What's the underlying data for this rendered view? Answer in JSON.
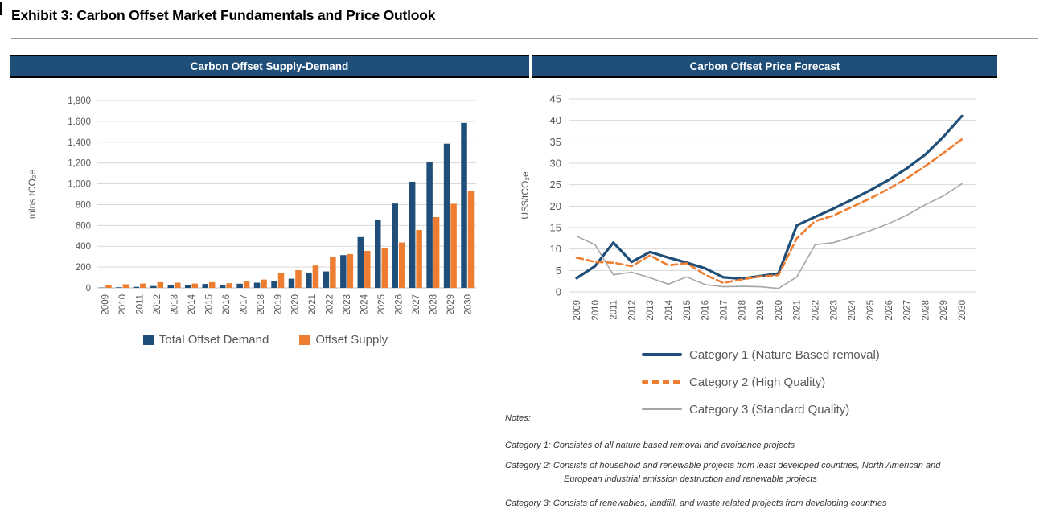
{
  "title": "Exhibit 3: Carbon Offset Market Fundamentals and Price Outlook",
  "panels": {
    "left_header": "Carbon Offset Supply-Demand",
    "right_header": "Carbon Offset Price Forecast"
  },
  "colors": {
    "header_bg": "#1F4E79",
    "header_text": "#FFFFFF",
    "navy": "#1F4E79",
    "orange": "#ED7D31",
    "gray": "#A6A6A6",
    "gridline": "#D9D9D9",
    "axis_line": "#BFBFBF",
    "axis_text": "#595959"
  },
  "chart_data": [
    {
      "type": "bar",
      "title": "Carbon Offset Supply-Demand",
      "xlabel": "",
      "ylabel": "mlns tCO₂e",
      "ylim": [
        0,
        1800
      ],
      "ytick_step": 200,
      "grid": true,
      "legend_position": "bottom-center",
      "categories": [
        "2009",
        "2010",
        "2011",
        "2012",
        "2013",
        "2014",
        "2015",
        "2016",
        "2017",
        "2018",
        "2019",
        "2020",
        "2021",
        "2022",
        "2023",
        "2024",
        "2025",
        "2026",
        "2027",
        "2028",
        "2029",
        "2030"
      ],
      "series": [
        {
          "name": "Total Offset Demand",
          "color": "#1F4E79",
          "values": [
            3,
            6,
            10,
            18,
            28,
            28,
            38,
            28,
            40,
            50,
            65,
            88,
            145,
            158,
            315,
            488,
            650,
            810,
            1020,
            1205,
            1385,
            1585
          ]
        },
        {
          "name": "Offset Supply",
          "color": "#ED7D31",
          "values": [
            30,
            35,
            42,
            55,
            50,
            42,
            55,
            45,
            65,
            80,
            145,
            170,
            215,
            295,
            325,
            355,
            378,
            436,
            556,
            680,
            808,
            932
          ]
        }
      ]
    },
    {
      "type": "line",
      "title": "Carbon Offset Price Forecast",
      "xlabel": "",
      "ylabel": "US$/tCO₂e",
      "ylim": [
        0,
        45
      ],
      "ytick_step": 5,
      "grid": true,
      "legend_position": "bottom-left",
      "x": [
        "2009",
        "2010",
        "2011",
        "2012",
        "2013",
        "2014",
        "2015",
        "2016",
        "2017",
        "2018",
        "2019",
        "2020",
        "2021",
        "2022",
        "2023",
        "2024",
        "2025",
        "2026",
        "2027",
        "2028",
        "2029",
        "2030"
      ],
      "series": [
        {
          "name": "Category 1 (Nature Based removal)",
          "color": "#1F4E79",
          "dash": false,
          "values": [
            3.2,
            6.0,
            11.5,
            7.0,
            9.3,
            8.0,
            6.8,
            5.5,
            3.4,
            3.1,
            3.7,
            4.3,
            15.5,
            17.5,
            19.4,
            21.5,
            23.7,
            26.1,
            28.8,
            32.0,
            36.2,
            41.0
          ]
        },
        {
          "name": "Category 2 (High Quality)",
          "color": "#ED7D31",
          "dash": true,
          "values": [
            8.0,
            7.0,
            6.8,
            6.0,
            8.5,
            6.2,
            6.7,
            4.0,
            2.1,
            2.9,
            3.6,
            3.9,
            12.5,
            16.5,
            17.8,
            19.8,
            21.8,
            24.0,
            26.5,
            29.3,
            32.4,
            35.6
          ]
        },
        {
          "name": "Category 3 (Standard Quality)",
          "color": "#A6A6A6",
          "dash": false,
          "values": [
            13.0,
            11.0,
            4.0,
            4.6,
            3.3,
            1.8,
            3.5,
            1.7,
            1.2,
            1.3,
            1.2,
            0.8,
            3.5,
            11.0,
            11.5,
            12.8,
            14.3,
            15.9,
            17.9,
            20.3,
            22.4,
            25.2
          ]
        }
      ]
    }
  ],
  "notes": {
    "heading": "Notes:",
    "items": [
      "Category 1: Consistes of all nature based removal and avoidance projects",
      "Category 2: Consists of household and renewable projects from least developed countries, North American and European industrial emission destruction and renewable projects",
      "Category 3: Consists of renewables, landfill, and waste related projects from developing countries"
    ]
  }
}
